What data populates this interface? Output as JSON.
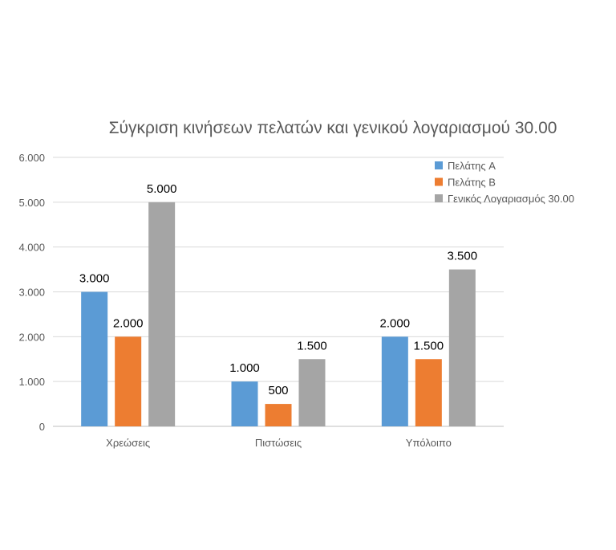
{
  "chart_data": {
    "type": "bar",
    "title": "Σύγκριση κινήσεων πελατών και γενικού λογαριασμού 30.00",
    "xlabel": "",
    "ylabel": "",
    "categories": [
      "Χρεώσεις",
      "Πιστώσεις",
      "Υπόλοιπο"
    ],
    "series": [
      {
        "name": "Πελάτης  A",
        "color": "#5B9BD5",
        "values": [
          3000,
          1000,
          2000
        ],
        "labels": [
          "3.000",
          "1.000",
          "2.000"
        ]
      },
      {
        "name": "Πελάτης B",
        "color": "#ED7D31",
        "values": [
          2000,
          500,
          1500
        ],
        "labels": [
          "2.000",
          "500",
          "1.500"
        ]
      },
      {
        "name": "Γενικός Λογαριασμός 30.00",
        "color": "#A5A5A5",
        "values": [
          5000,
          1500,
          3500
        ],
        "labels": [
          "5.000",
          "1.500",
          "3.500"
        ]
      }
    ],
    "ylim": [
      0,
      6000
    ],
    "yticks": [
      0,
      1000,
      2000,
      3000,
      4000,
      5000,
      6000
    ],
    "ytick_labels": [
      "0",
      "1.000",
      "2.000",
      "3.000",
      "4.000",
      "5.000",
      "6.000"
    ],
    "grid": true,
    "legend_position": "top-right"
  }
}
